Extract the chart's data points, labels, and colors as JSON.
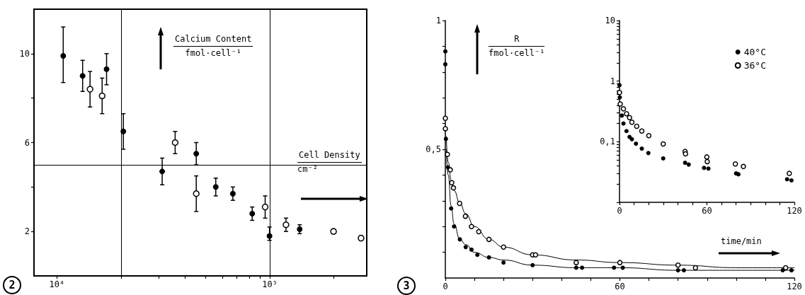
{
  "chart_data": [
    {
      "type": "scatter",
      "xlabel": "Cell Density\ncm⁻²",
      "ylabel": "Calcium Content\nfmol·cell⁻¹",
      "annotations": [
        "2"
      ],
      "log": "x",
      "marker": "circle",
      "xlim": [
        7800,
        285000
      ],
      "ylim": [
        0,
        12
      ],
      "xticks": [
        {
          "value": 10000,
          "label": "10⁴"
        },
        {
          "value": 20000,
          "label": null
        },
        {
          "value": 30000,
          "label": null
        },
        {
          "value": 40000,
          "label": null
        },
        {
          "value": 50000,
          "label": null
        },
        {
          "value": 60000,
          "label": null
        },
        {
          "value": 70000,
          "label": null
        },
        {
          "value": 80000,
          "label": null
        },
        {
          "value": 90000,
          "label": null
        },
        {
          "value": 100000,
          "label": "10⁵"
        },
        {
          "value": 200000,
          "label": null
        }
      ],
      "yticks": [
        2,
        {
          "value": 4,
          "label": null
        },
        6,
        {
          "value": 8,
          "label": null
        },
        10
      ],
      "ref_lines": [
        {
          "axis": "x",
          "value": 20000,
          "color": "#000000"
        },
        {
          "axis": "x",
          "value": 100000,
          "color": "#000000"
        },
        {
          "axis": "y",
          "value": 5,
          "color": "#000000"
        }
      ],
      "series": [
        {
          "color": "#000000",
          "x": [
            10700,
            13200,
            17100,
            20500,
            31200,
            45100,
            55700,
            67000,
            82600,
            99600,
            138000
          ],
          "values": [
            9.9,
            9.0,
            9.3,
            6.5,
            4.7,
            5.5,
            4.0,
            3.7,
            2.8,
            1.8,
            2.1
          ],
          "errors": [
            [
              8.7,
              11.2
            ],
            [
              8.3,
              9.7
            ],
            [
              8.6,
              10.0
            ],
            [
              5.7,
              7.3
            ],
            [
              4.1,
              5.3
            ],
            [
              5.0,
              6.0
            ],
            [
              3.6,
              4.4
            ],
            [
              3.4,
              4.0
            ],
            [
              2.5,
              3.1
            ],
            [
              1.6,
              2.2
            ],
            [
              1.9,
              2.3
            ]
          ]
        },
        {
          "color": "#000000",
          "x": [
            14300,
            16300,
            35900,
            45100,
            95000,
            119000,
            199000,
            268000
          ],
          "values": [
            8.4,
            8.1,
            6.0,
            3.7,
            3.1,
            2.3,
            2.0,
            1.7
          ],
          "errors": [
            [
              7.6,
              9.2
            ],
            [
              7.3,
              8.9
            ],
            [
              5.5,
              6.5
            ],
            [
              2.9,
              4.5
            ],
            [
              2.6,
              3.6
            ],
            [
              2.0,
              2.6
            ],
            [
              1.9,
              2.1
            ],
            [
              1.6,
              1.8
            ]
          ]
        }
      ]
    },
    {
      "type": "scatter",
      "xlabel": "time/min",
      "ylabel": "R\nfmol·cell⁻¹",
      "annotations": [
        "3"
      ],
      "marker": "circle",
      "xlim": [
        0,
        120
      ],
      "ylim": [
        0,
        1
      ],
      "xticks": [
        0,
        {
          "value": 10,
          "label": null
        },
        {
          "value": 20,
          "label": null
        },
        {
          "value": 30,
          "label": null
        },
        {
          "value": 40,
          "label": null
        },
        {
          "value": 50,
          "label": null
        },
        60,
        {
          "value": 70,
          "label": null
        },
        {
          "value": 80,
          "label": null
        },
        {
          "value": 90,
          "label": null
        },
        {
          "value": 100,
          "label": null
        },
        {
          "value": 110,
          "label": null
        },
        120
      ],
      "yticks": [
        {
          "value": 0.1,
          "label": null
        },
        {
          "value": 0.2,
          "label": null
        },
        {
          "value": 0.3,
          "label": null
        },
        {
          "value": 0.4,
          "label": null
        },
        {
          "value": 0.5,
          "label": "0,5"
        },
        {
          "value": 0.6,
          "label": null
        },
        {
          "value": 0.7,
          "label": null
        },
        {
          "value": 0.8,
          "label": null
        },
        {
          "value": 0.9,
          "label": null
        },
        1
      ],
      "series": [
        {
          "color": "#000000",
          "x": [
            0,
            0,
            0.2,
            0.9,
            2,
            3,
            5,
            7,
            9,
            11,
            15,
            20,
            30,
            45,
            47,
            58,
            61,
            80,
            82,
            116,
            119
          ],
          "values": [
            0.88,
            0.83,
            0.54,
            0.43,
            0.27,
            0.2,
            0.15,
            0.12,
            0.11,
            0.09,
            0.08,
            0.06,
            0.05,
            0.04,
            0.04,
            0.04,
            0.04,
            0.03,
            0.03,
            0.03,
            0.03
          ]
        },
        {
          "color": "#000000",
          "x": [
            0,
            0,
            0.7,
            1.7,
            2.2,
            2.8,
            4.9,
            6.9,
            9,
            11.5,
            15,
            20,
            30,
            31,
            45,
            60,
            80,
            86,
            117
          ],
          "values": [
            0.62,
            0.58,
            0.48,
            0.42,
            0.37,
            0.35,
            0.29,
            0.24,
            0.2,
            0.18,
            0.15,
            0.12,
            0.09,
            0.09,
            0.06,
            0.06,
            0.05,
            0.04,
            0.04
          ]
        },
        {
          "type": "line",
          "marker": "none",
          "color": "#000000",
          "x": [
            0.3,
            1,
            2,
            3,
            5,
            7,
            10,
            15,
            20,
            30,
            45,
            60,
            80,
            100,
            120
          ],
          "values": [
            0.55,
            0.45,
            0.38,
            0.34,
            0.29,
            0.25,
            0.2,
            0.15,
            0.12,
            0.09,
            0.07,
            0.06,
            0.05,
            0.04,
            0.04
          ]
        },
        {
          "type": "line",
          "marker": "none",
          "color": "#000000",
          "x": [
            0.3,
            1,
            2,
            3,
            5,
            7,
            10,
            15,
            20,
            30,
            45,
            60,
            80,
            100,
            120
          ],
          "values": [
            0.5,
            0.4,
            0.28,
            0.21,
            0.15,
            0.13,
            0.1,
            0.08,
            0.07,
            0.05,
            0.04,
            0.04,
            0.03,
            0.03,
            0.03
          ]
        }
      ]
    },
    {
      "type": "scatter",
      "log": "y",
      "marker": "circle",
      "legend": "top right",
      "xlim": [
        0,
        120
      ],
      "ylim": [
        0.01,
        10
      ],
      "xticks": [
        0,
        {
          "value": 10,
          "label": null
        },
        {
          "value": 20,
          "label": null
        },
        {
          "value": 30,
          "label": null
        },
        {
          "value": 40,
          "label": null
        },
        {
          "value": 50,
          "label": null
        },
        60,
        {
          "value": 70,
          "label": null
        },
        {
          "value": 80,
          "label": null
        },
        {
          "value": 90,
          "label": null
        },
        {
          "value": 100,
          "label": null
        },
        {
          "value": 110,
          "label": null
        },
        120
      ],
      "yticks": [
        {
          "value": 0.01,
          "label": null
        },
        {
          "value": 0.02,
          "label": null
        },
        {
          "value": 0.03,
          "label": null
        },
        {
          "value": 0.04,
          "label": null
        },
        {
          "value": 0.05,
          "label": null
        },
        {
          "value": 0.06,
          "label": null
        },
        {
          "value": 0.07,
          "label": null
        },
        {
          "value": 0.08,
          "label": null
        },
        {
          "value": 0.09,
          "label": null
        },
        {
          "value": 0.1,
          "label": "0,1"
        },
        {
          "value": 0.2,
          "label": null
        },
        {
          "value": 0.3,
          "label": null
        },
        {
          "value": 0.4,
          "label": null
        },
        {
          "value": 0.5,
          "label": null
        },
        {
          "value": 0.6,
          "label": null
        },
        {
          "value": 0.7,
          "label": null
        },
        {
          "value": 0.8,
          "label": null
        },
        {
          "value": 0.9,
          "label": null
        },
        1,
        {
          "value": 2,
          "label": null
        },
        {
          "value": 3,
          "label": null
        },
        {
          "value": 4,
          "label": null
        },
        {
          "value": 5,
          "label": null
        },
        {
          "value": 6,
          "label": null
        },
        {
          "value": 7,
          "label": null
        },
        {
          "value": 8,
          "label": null
        },
        {
          "value": 9,
          "label": null
        },
        10
      ],
      "series": [
        {
          "name": "40°C",
          "color": "#000000",
          "x": [
            0,
            0.2,
            1.6,
            2.7,
            4.8,
            6.9,
            8.5,
            11.3,
            15.3,
            19.8,
            30,
            45,
            47.5,
            58,
            61,
            80,
            81.6,
            115,
            118
          ],
          "values": [
            0.86,
            0.54,
            0.27,
            0.2,
            0.15,
            0.12,
            0.11,
            0.093,
            0.077,
            0.065,
            0.053,
            0.045,
            0.042,
            0.037,
            0.036,
            0.03,
            0.029,
            0.024,
            0.023
          ]
        },
        {
          "name": "36°C",
          "color": "#000000",
          "x": [
            0,
            0.5,
            2.7,
            4.8,
            6.9,
            8.5,
            11.8,
            15.3,
            20.1,
            30,
            45,
            45.3,
            59.9,
            60.2,
            79.5,
            85,
            116.5
          ],
          "values": [
            0.65,
            0.42,
            0.35,
            0.29,
            0.25,
            0.21,
            0.18,
            0.15,
            0.126,
            0.092,
            0.069,
            0.063,
            0.056,
            0.047,
            0.043,
            0.039,
            0.03
          ]
        }
      ]
    }
  ]
}
